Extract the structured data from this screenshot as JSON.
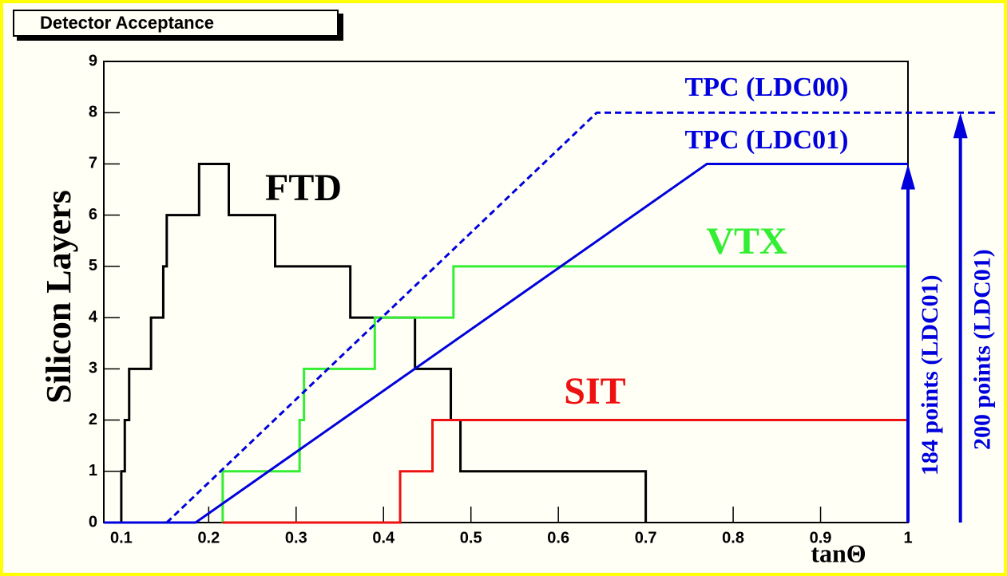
{
  "chart_data": {
    "type": "line",
    "title": "Detector Acceptance",
    "xlabel": "tanΘ",
    "ylabel": "Silicon Layers",
    "xlim": [
      0.08,
      1.0
    ],
    "ylim": [
      0,
      9
    ],
    "xticks": [
      0.1,
      0.2,
      0.3,
      0.4,
      0.5,
      0.6,
      0.7,
      0.8,
      0.9,
      1
    ],
    "yticks": [
      0,
      1,
      2,
      3,
      4,
      5,
      6,
      7,
      8,
      9
    ],
    "series": [
      {
        "name": "FTD",
        "color": "#000000",
        "x": [
          0.08,
          0.1,
          0.1,
          0.104,
          0.104,
          0.109,
          0.109,
          0.134,
          0.134,
          0.148,
          0.148,
          0.152,
          0.152,
          0.189,
          0.189,
          0.223,
          0.223,
          0.276,
          0.276,
          0.362,
          0.362,
          0.436,
          0.436,
          0.477,
          0.477,
          0.488,
          0.488,
          0.7,
          0.7
        ],
        "values": [
          0,
          0,
          1,
          1,
          2,
          2,
          3,
          3,
          4,
          4,
          5,
          5,
          6,
          6,
          7,
          7,
          6,
          6,
          5,
          5,
          4,
          4,
          3,
          3,
          2,
          2,
          1,
          1,
          0
        ]
      },
      {
        "name": "VTX",
        "color": "#33ee33",
        "x": [
          0.216,
          0.216,
          0.304,
          0.304,
          0.309,
          0.309,
          0.39,
          0.39,
          0.48,
          0.48,
          1.0
        ],
        "values": [
          0,
          1,
          1,
          2,
          2,
          3,
          3,
          4,
          4,
          5,
          5
        ]
      },
      {
        "name": "SIT",
        "color": "#ee1111",
        "x": [
          0.216,
          0.419,
          0.419,
          0.456,
          0.456,
          1.0
        ],
        "values": [
          0,
          0,
          1,
          1,
          2,
          2
        ]
      },
      {
        "name": "TPC (LDC00)",
        "color": "#0000dd",
        "dashed": true,
        "x": [
          0.152,
          0.644,
          1.1
        ],
        "values": [
          0,
          8,
          8
        ]
      },
      {
        "name": "TPC (LDC01)",
        "color": "#0000dd",
        "x": [
          0.08,
          0.185,
          0.77,
          1.0
        ],
        "values": [
          0,
          0,
          7,
          7
        ]
      }
    ],
    "annotations": [
      {
        "text": "184 points (LDC01)",
        "x": 1.0,
        "y": 7,
        "color": "#0000dd"
      },
      {
        "text": "200 points (LDC01)",
        "x": 1.06,
        "y": 8,
        "color": "#0000dd"
      }
    ]
  }
}
